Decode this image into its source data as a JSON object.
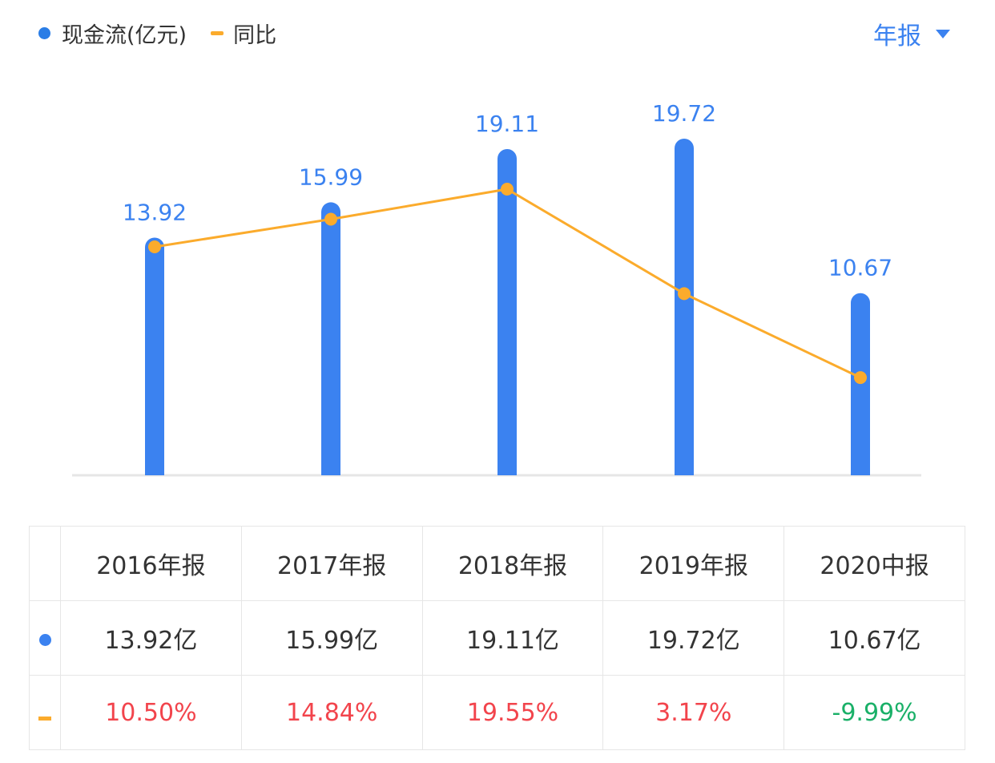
{
  "legend": {
    "series1": "现金流(亿元)",
    "series2": "同比"
  },
  "period_selector": "年报",
  "chart_data": {
    "type": "bar+line",
    "categories": [
      "2016年报",
      "2017年报",
      "2018年报",
      "2019年报",
      "2020中报"
    ],
    "series": [
      {
        "name": "现金流(亿元)",
        "type": "bar",
        "values": [
          13.92,
          15.99,
          19.11,
          19.72,
          10.67
        ],
        "labels": [
          "13.92",
          "15.99",
          "19.11",
          "19.72",
          "10.67"
        ]
      },
      {
        "name": "同比",
        "type": "line",
        "values": [
          10.5,
          14.84,
          19.55,
          3.17,
          -9.99
        ]
      }
    ],
    "colors": {
      "bar": "#3b82f0",
      "line": "#fbab2c"
    }
  },
  "table": {
    "headers": [
      "2016年报",
      "2017年报",
      "2018年报",
      "2019年报",
      "2020中报"
    ],
    "cash": [
      "13.92亿",
      "15.99亿",
      "19.11亿",
      "19.72亿",
      "10.67亿"
    ],
    "yoy": [
      "10.50%",
      "14.84%",
      "19.55%",
      "3.17%",
      "-9.99%"
    ]
  }
}
